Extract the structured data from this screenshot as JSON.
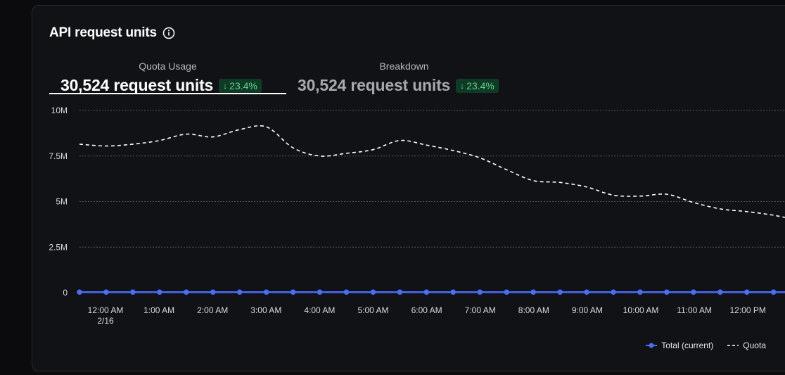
{
  "card": {
    "title": "API request units"
  },
  "tabs": [
    {
      "label": "Quota Usage",
      "value": "30,524 request units",
      "change": "23.4%",
      "active": true
    },
    {
      "label": "Breakdown",
      "value": "30,524 request units",
      "change": "23.4%",
      "active": false
    }
  ],
  "colors": {
    "total_series": "#4a6cf7",
    "quota_series": "#ffffff",
    "badge_bg": "#0f3a25",
    "badge_text": "#5fd38d"
  },
  "chart_data": {
    "type": "line",
    "y_ticks": [
      "10M",
      "7.5M",
      "5M",
      "2.5M",
      "0"
    ],
    "y_tick_values": [
      10000000,
      7500000,
      5000000,
      2500000,
      0
    ],
    "ylim": [
      0,
      10000000
    ],
    "x_ticks": [
      "12:00 AM",
      "1:00 AM",
      "2:00 AM",
      "3:00 AM",
      "4:00 AM",
      "5:00 AM",
      "6:00 AM",
      "7:00 AM",
      "8:00 AM",
      "9:00 AM",
      "10:00 AM",
      "11:00 AM",
      "12:00 PM"
    ],
    "x_tick_sublabel": "2/16",
    "grid": true,
    "legend_position": "bottom-right",
    "series": [
      {
        "name": "Total (current)",
        "style": "solid-with-markers",
        "values": [
          30524,
          30524,
          30524,
          30524,
          30524,
          30524,
          30524,
          30524,
          30524,
          30524,
          30524,
          30524,
          30524,
          30524,
          30524,
          30524,
          30524,
          30524,
          30524,
          30524,
          30524,
          30524,
          30524,
          30524,
          30524,
          30524,
          30524,
          30524
        ]
      },
      {
        "name": "Quota",
        "style": "dashed",
        "values": [
          8150000,
          8050000,
          8150000,
          8350000,
          8700000,
          8550000,
          8950000,
          9100000,
          7950000,
          7500000,
          7650000,
          7850000,
          8350000,
          8100000,
          7800000,
          7400000,
          6750000,
          6150000,
          6050000,
          5800000,
          5350000,
          5300000,
          5400000,
          4950000,
          4600000,
          4450000,
          4250000,
          3950000
        ]
      }
    ]
  },
  "legend": {
    "total_label": "Total (current)",
    "quota_label": "Quota"
  }
}
